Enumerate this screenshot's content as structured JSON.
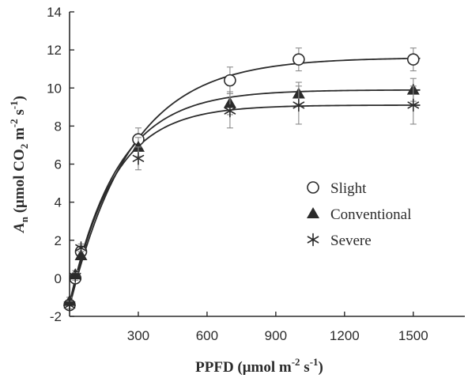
{
  "chart_data": {
    "type": "scatter",
    "xlabel": "PPFD (μmol m⁻² s⁻¹)",
    "ylabel": "An (μmol CO2 m⁻² s⁻¹)",
    "ylabel_parts": {
      "main": "A",
      "sub": "n",
      "rest1": " (μmol CO",
      "sub2": "2",
      "rest2": " m",
      "sup1": "-2",
      "rest3": " s",
      "sup2": "-1",
      "rest4": ")"
    },
    "xlabel_parts": {
      "rest1": "PPFD (μmol m",
      "sup1": "-2",
      "rest2": " s",
      "sup2": "-1",
      "rest3": ")"
    },
    "xlim": [
      0,
      1725
    ],
    "ylim": [
      -2,
      14
    ],
    "x_ticks": [
      300,
      600,
      900,
      1200,
      1500
    ],
    "y_ticks": [
      -2,
      0,
      2,
      4,
      6,
      8,
      10,
      12,
      14
    ],
    "grid": false,
    "legend_position": "center-right",
    "series": [
      {
        "name": "Slight",
        "marker": "open-circle",
        "x": [
          0,
          25,
          50,
          300,
          700,
          1000,
          1500
        ],
        "y": [
          -1.4,
          0.0,
          1.4,
          7.3,
          10.4,
          11.5,
          11.5
        ],
        "err": [
          0.2,
          0.2,
          0.2,
          0.6,
          0.7,
          0.6,
          0.6
        ],
        "curve": {
          "amax": 11.6,
          "rd": 1.5,
          "k": 0.00375
        }
      },
      {
        "name": "Conventional",
        "marker": "filled-triangle",
        "x": [
          0,
          25,
          50,
          300,
          700,
          1000,
          1500
        ],
        "y": [
          -1.2,
          0.2,
          1.2,
          6.9,
          9.2,
          9.7,
          9.9
        ],
        "err": [
          0.2,
          0.2,
          0.2,
          0.5,
          0.6,
          0.6,
          0.6
        ],
        "curve": {
          "amax": 9.9,
          "rd": 1.3,
          "k": 0.0048
        }
      },
      {
        "name": "Severe",
        "marker": "asterisk",
        "x": [
          0,
          25,
          50,
          300,
          700,
          1000,
          1500
        ],
        "y": [
          -1.4,
          0.1,
          1.6,
          6.3,
          8.8,
          9.1,
          9.1
        ],
        "err": [
          0.2,
          0.2,
          0.2,
          0.6,
          0.9,
          1.0,
          1.0
        ],
        "curve": {
          "amax": 9.1,
          "rd": 1.5,
          "k": 0.0053
        }
      }
    ]
  }
}
